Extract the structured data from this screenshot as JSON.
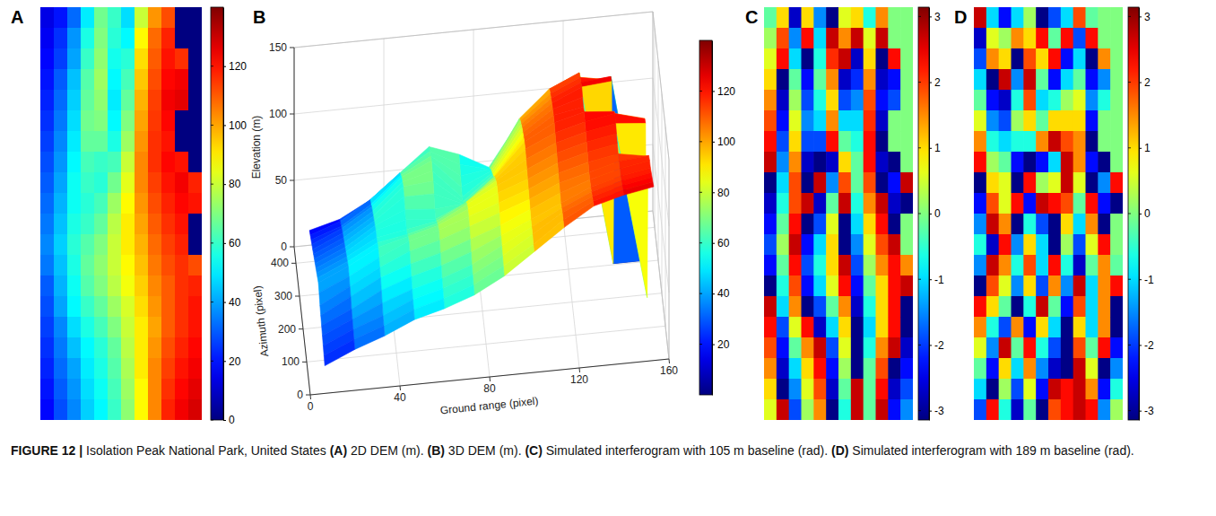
{
  "chart_data": [
    {
      "type": "heatmap",
      "panel": "A",
      "tick_labels": false,
      "colorbar": {
        "lim": [
          0,
          140
        ],
        "ticks": [
          0,
          20,
          40,
          60,
          80,
          100,
          120
        ]
      },
      "cells": [
        [
          14,
          20,
          32,
          50,
          68,
          60,
          48,
          80,
          102,
          112,
          0,
          0
        ],
        [
          16,
          24,
          38,
          56,
          70,
          58,
          52,
          88,
          108,
          118,
          0,
          0
        ],
        [
          18,
          26,
          40,
          60,
          72,
          55,
          58,
          92,
          110,
          120,
          116,
          0
        ],
        [
          20,
          30,
          44,
          64,
          74,
          52,
          62,
          95,
          112,
          122,
          124,
          0
        ],
        [
          22,
          32,
          46,
          66,
          72,
          50,
          66,
          98,
          114,
          124,
          126,
          0
        ],
        [
          24,
          34,
          48,
          68,
          70,
          52,
          70,
          100,
          115,
          122,
          0,
          0
        ],
        [
          26,
          36,
          50,
          66,
          66,
          56,
          74,
          102,
          116,
          120,
          0,
          0
        ],
        [
          28,
          38,
          52,
          62,
          60,
          62,
          80,
          104,
          116,
          122,
          120,
          0
        ],
        [
          30,
          40,
          54,
          60,
          58,
          68,
          84,
          104,
          114,
          120,
          124,
          118
        ],
        [
          32,
          42,
          54,
          58,
          62,
          74,
          88,
          102,
          112,
          118,
          122,
          120
        ],
        [
          34,
          44,
          56,
          60,
          66,
          78,
          90,
          100,
          110,
          116,
          120,
          0
        ],
        [
          36,
          46,
          58,
          64,
          70,
          80,
          90,
          98,
          108,
          114,
          118,
          0
        ],
        [
          34,
          44,
          56,
          66,
          72,
          80,
          88,
          96,
          106,
          112,
          116,
          112
        ],
        [
          30,
          42,
          54,
          64,
          70,
          78,
          86,
          94,
          104,
          110,
          116,
          118
        ],
        [
          28,
          40,
          52,
          60,
          66,
          74,
          82,
          92,
          102,
          110,
          116,
          120
        ],
        [
          26,
          36,
          48,
          56,
          62,
          70,
          80,
          90,
          100,
          110,
          116,
          120
        ],
        [
          24,
          34,
          44,
          52,
          58,
          66,
          78,
          90,
          102,
          112,
          118,
          122
        ],
        [
          22,
          32,
          40,
          50,
          56,
          64,
          76,
          90,
          104,
          114,
          120,
          124
        ],
        [
          20,
          30,
          38,
          48,
          54,
          62,
          74,
          88,
          104,
          116,
          122,
          126
        ],
        [
          18,
          28,
          36,
          46,
          52,
          60,
          72,
          88,
          104,
          118,
          124,
          128
        ]
      ]
    },
    {
      "type": "surface3d",
      "panel": "B",
      "grid": true,
      "xlabel": "Ground range (pixel)",
      "xlim": [
        0,
        160
      ],
      "xticks": [
        0,
        40,
        80,
        120,
        160
      ],
      "ylabel": "Azimuth (pixel)",
      "ylim": [
        0,
        450
      ],
      "yticks": [
        0,
        100,
        200,
        300,
        400
      ],
      "zlabel": "Elevation (m)",
      "zlim": [
        0,
        150
      ],
      "zticks": [
        0,
        50,
        100,
        150
      ],
      "colorbar": {
        "lim": [
          0,
          140
        ],
        "ticks": [
          20,
          40,
          60,
          80,
          100,
          120
        ]
      },
      "cells": [
        [
          14,
          20,
          32,
          50,
          68,
          60,
          48,
          80,
          102,
          112,
          0,
          0
        ],
        [
          16,
          24,
          38,
          56,
          70,
          58,
          52,
          88,
          108,
          118,
          0,
          0
        ],
        [
          18,
          26,
          40,
          60,
          72,
          55,
          58,
          92,
          110,
          120,
          116,
          0
        ],
        [
          20,
          30,
          44,
          64,
          74,
          52,
          62,
          95,
          112,
          122,
          124,
          0
        ],
        [
          22,
          32,
          46,
          66,
          72,
          50,
          66,
          98,
          114,
          124,
          126,
          0
        ],
        [
          24,
          34,
          48,
          68,
          70,
          52,
          70,
          100,
          115,
          122,
          0,
          0
        ],
        [
          26,
          36,
          50,
          66,
          66,
          56,
          74,
          102,
          116,
          120,
          0,
          0
        ],
        [
          28,
          38,
          52,
          62,
          60,
          62,
          80,
          104,
          116,
          122,
          120,
          0
        ],
        [
          30,
          40,
          54,
          60,
          58,
          68,
          84,
          104,
          114,
          120,
          124,
          118
        ],
        [
          32,
          42,
          54,
          58,
          62,
          74,
          88,
          102,
          112,
          118,
          122,
          120
        ],
        [
          34,
          44,
          56,
          60,
          66,
          78,
          90,
          100,
          110,
          116,
          120,
          0
        ],
        [
          36,
          46,
          58,
          64,
          70,
          80,
          90,
          98,
          108,
          114,
          118,
          0
        ],
        [
          34,
          44,
          56,
          66,
          72,
          80,
          88,
          96,
          106,
          112,
          116,
          112
        ],
        [
          30,
          42,
          54,
          64,
          70,
          78,
          86,
          94,
          104,
          110,
          116,
          118
        ],
        [
          28,
          40,
          52,
          60,
          66,
          74,
          82,
          92,
          102,
          110,
          116,
          120
        ],
        [
          26,
          36,
          48,
          56,
          62,
          70,
          80,
          90,
          100,
          110,
          116,
          120
        ],
        [
          24,
          34,
          44,
          52,
          58,
          66,
          78,
          90,
          102,
          112,
          118,
          122
        ],
        [
          22,
          32,
          40,
          50,
          56,
          64,
          76,
          90,
          104,
          114,
          120,
          124
        ],
        [
          20,
          30,
          38,
          48,
          54,
          62,
          74,
          88,
          104,
          116,
          122,
          126
        ],
        [
          18,
          28,
          36,
          46,
          52,
          60,
          72,
          88,
          104,
          118,
          124,
          128
        ]
      ]
    },
    {
      "type": "heatmap",
      "panel": "C",
      "tick_labels": false,
      "colorbar": {
        "lim": [
          -3.1416,
          3.1416
        ],
        "ticks": [
          -3,
          -2,
          -1,
          0,
          1,
          2,
          3
        ]
      },
      "cells": [
        [
          -0.2,
          1.0,
          -2.7,
          1.0,
          -1.5,
          -3.1,
          0.6,
          1.0,
          -0.6,
          1.5,
          0,
          0
        ],
        [
          0.2,
          1.9,
          -1.5,
          2.3,
          -1.0,
          2.7,
          1.5,
          2.7,
          0.6,
          2.7,
          0,
          0
        ],
        [
          0.6,
          2.3,
          -1.0,
          -3.1,
          -0.6,
          2.1,
          2.7,
          -2.7,
          1.0,
          -3.1,
          2.3,
          0
        ],
        [
          1.0,
          -3.1,
          -0.2,
          -2.3,
          -0.2,
          1.5,
          -2.7,
          -2.1,
          1.5,
          -2.7,
          -2.3,
          0
        ],
        [
          1.5,
          -2.7,
          0.2,
          -1.9,
          -0.6,
          1.0,
          -1.9,
          -1.5,
          1.9,
          -2.3,
          -1.9,
          0
        ],
        [
          1.9,
          -2.3,
          0.6,
          -1.5,
          -1.0,
          1.5,
          -1.0,
          -1.0,
          2.1,
          -2.7,
          0,
          0
        ],
        [
          2.3,
          -1.9,
          1.0,
          -1.9,
          -1.9,
          2.3,
          -0.2,
          -0.6,
          2.3,
          -3.1,
          0,
          0
        ],
        [
          2.7,
          -1.5,
          1.5,
          -2.7,
          -3.1,
          -2.7,
          1.0,
          -0.2,
          2.3,
          -2.7,
          -3.1,
          0
        ],
        [
          -3.1,
          -1.0,
          1.9,
          -3.1,
          2.7,
          -1.5,
          1.9,
          -0.2,
          1.9,
          -3.1,
          -2.3,
          2.7
        ],
        [
          -2.7,
          -0.6,
          1.9,
          2.7,
          -2.7,
          -0.2,
          2.7,
          -0.6,
          1.5,
          2.7,
          -2.7,
          -3.1
        ],
        [
          -2.3,
          -0.2,
          2.3,
          -3.1,
          -1.9,
          0.6,
          -3.1,
          -1.0,
          1.0,
          2.3,
          -3.1,
          0
        ],
        [
          -1.9,
          0.2,
          2.7,
          -2.3,
          -1.0,
          1.0,
          -3.1,
          -1.5,
          0.6,
          1.9,
          2.7,
          0
        ],
        [
          -2.3,
          -0.2,
          2.3,
          -1.9,
          -0.6,
          1.0,
          2.7,
          -1.9,
          0.2,
          1.5,
          2.3,
          1.5
        ],
        [
          -3.1,
          -0.6,
          1.9,
          -2.3,
          -1.0,
          0.6,
          2.3,
          -2.3,
          -0.2,
          1.0,
          2.3,
          2.7
        ],
        [
          2.7,
          -1.0,
          1.5,
          -3.1,
          -1.9,
          -0.2,
          1.5,
          -2.7,
          -0.6,
          1.0,
          2.3,
          -3.1
        ],
        [
          2.3,
          -1.9,
          0.6,
          2.3,
          -2.7,
          -1.0,
          1.0,
          -3.1,
          -1.0,
          1.0,
          2.3,
          -3.1
        ],
        [
          1.9,
          -2.3,
          -0.2,
          1.5,
          2.7,
          -1.9,
          0.6,
          -3.1,
          -0.6,
          1.5,
          2.7,
          -2.7
        ],
        [
          1.5,
          -2.7,
          -1.0,
          1.0,
          2.3,
          -2.3,
          0.2,
          -3.1,
          -0.2,
          1.9,
          -3.1,
          -2.3
        ],
        [
          1.0,
          -3.1,
          -1.5,
          0.6,
          1.9,
          -2.7,
          -0.2,
          2.7,
          -0.2,
          2.3,
          -2.7,
          -1.9
        ],
        [
          0.6,
          2.7,
          -1.9,
          0.2,
          1.5,
          -3.1,
          -0.6,
          2.7,
          -0.2,
          2.7,
          -2.3,
          -1.5
        ]
      ]
    },
    {
      "type": "heatmap",
      "panel": "D",
      "tick_labels": false,
      "colorbar": {
        "lim": [
          -3.1416,
          3.1416
        ],
        "ticks": [
          -3,
          -2,
          -1,
          0,
          1,
          2,
          3
        ]
      },
      "cells": [
        [
          2.7,
          -1.0,
          -2.3,
          -1.0,
          0.2,
          -3.1,
          -1.9,
          -1.0,
          1.9,
          -0.2,
          0,
          0
        ],
        [
          -2.7,
          0.6,
          0.2,
          1.5,
          1.0,
          2.3,
          -0.2,
          2.3,
          -1.9,
          2.3,
          0,
          0
        ],
        [
          -1.9,
          1.5,
          1.0,
          -3.1,
          1.9,
          1.0,
          2.3,
          -2.3,
          -1.0,
          -3.1,
          1.5,
          0
        ],
        [
          -1.0,
          -3.1,
          2.7,
          -1.5,
          2.7,
          -0.2,
          -2.3,
          -1.0,
          -0.2,
          -2.3,
          -1.5,
          0
        ],
        [
          -0.2,
          -2.3,
          -2.7,
          -0.6,
          1.9,
          -1.0,
          -0.6,
          0.2,
          0.6,
          -1.5,
          -0.6,
          0
        ],
        [
          0.6,
          -1.5,
          -1.9,
          0.2,
          1.0,
          -0.2,
          1.0,
          1.0,
          1.0,
          -2.3,
          0,
          0
        ],
        [
          1.5,
          -0.6,
          -1.0,
          -0.6,
          -0.6,
          1.5,
          2.7,
          1.9,
          1.5,
          -3.1,
          0,
          0
        ],
        [
          2.3,
          0.2,
          -0.2,
          -2.3,
          -3.1,
          -2.3,
          -1.0,
          2.7,
          1.5,
          -2.3,
          -3.1,
          0
        ],
        [
          -3.1,
          1.0,
          0.6,
          -3.1,
          2.3,
          0.2,
          0.6,
          2.7,
          0.6,
          -3.1,
          -1.5,
          2.3
        ],
        [
          -2.3,
          1.9,
          0.6,
          2.3,
          -2.3,
          2.7,
          2.3,
          1.9,
          -0.2,
          2.3,
          -2.3,
          -3.1
        ],
        [
          -1.5,
          2.7,
          1.5,
          -3.1,
          -0.6,
          -1.9,
          -3.1,
          1.0,
          -1.0,
          1.5,
          -3.1,
          0
        ],
        [
          -0.6,
          -2.7,
          2.3,
          -1.5,
          1.0,
          -1.0,
          -3.1,
          0.2,
          -1.9,
          0.6,
          2.3,
          0
        ],
        [
          -1.5,
          2.7,
          1.5,
          -0.6,
          1.9,
          -1.0,
          2.3,
          -0.6,
          -2.7,
          -0.2,
          1.5,
          -0.2
        ],
        [
          -3.1,
          1.9,
          0.6,
          -1.5,
          1.0,
          -1.9,
          1.5,
          -1.5,
          2.7,
          -1.0,
          1.5,
          2.3
        ],
        [
          2.3,
          1.0,
          -0.2,
          -3.1,
          -0.6,
          2.7,
          -0.2,
          -2.3,
          1.9,
          -1.0,
          1.5,
          -3.1
        ],
        [
          1.5,
          -0.6,
          -1.9,
          1.5,
          -2.3,
          1.0,
          -1.0,
          -3.1,
          1.0,
          -1.0,
          1.5,
          -3.1
        ],
        [
          0.6,
          -1.5,
          2.7,
          -0.2,
          2.3,
          -0.6,
          -1.9,
          -3.1,
          1.9,
          -0.2,
          2.3,
          -2.3
        ],
        [
          -0.2,
          -2.3,
          1.0,
          -1.0,
          1.5,
          -1.5,
          -2.7,
          -3.1,
          2.7,
          0.6,
          -3.1,
          -1.5
        ],
        [
          -1.0,
          -3.1,
          0.2,
          -1.9,
          0.6,
          -2.3,
          2.7,
          2.3,
          2.7,
          1.5,
          -2.3,
          -0.6
        ],
        [
          -1.9,
          2.3,
          -0.6,
          -2.7,
          -0.2,
          -3.1,
          1.9,
          2.3,
          2.7,
          2.3,
          -1.5,
          0.2
        ]
      ]
    }
  ],
  "caption": {
    "label": "FIGURE 12 |",
    "parts": [
      " Isolation Peak National Park, United States ",
      "(A)",
      " 2D DEM (m). ",
      "(B)",
      " 3D DEM (m). ",
      "(C)",
      " Simulated interferogram with 105 m baseline (rad). ",
      "(D)",
      " Simulated interferogram with 189 m baseline (rad)."
    ]
  }
}
